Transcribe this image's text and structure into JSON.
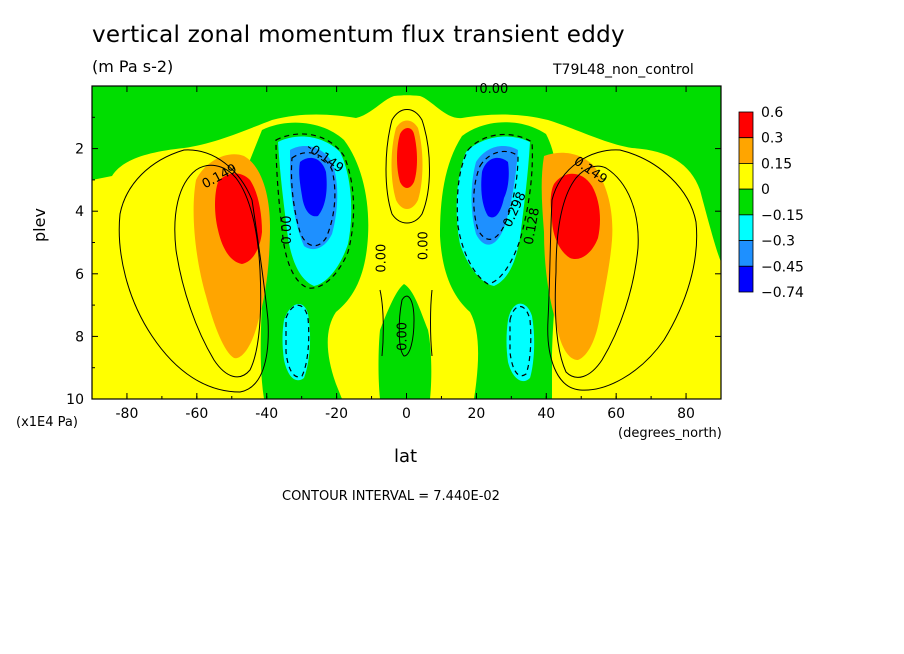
{
  "chart_data": {
    "type": "heatmap",
    "title": "vertical zonal momentum flux transient eddy",
    "units": "(m Pa s-2)",
    "run_label": "T79L48_non_control",
    "xlabel": "lat",
    "x_units": "(degrees_north)",
    "ylabel": "plev",
    "y_units": "(x1E4 Pa)",
    "xlim": [
      -90,
      90
    ],
    "ylim": [
      10,
      0
    ],
    "x_ticks": [
      "-80",
      "-60",
      "-40",
      "-20",
      "0",
      "20",
      "40",
      "60",
      "80"
    ],
    "x_tick_values": [
      -80,
      -60,
      -40,
      -20,
      0,
      20,
      40,
      60,
      80
    ],
    "y_ticks": [
      "2",
      "4",
      "6",
      "8",
      "10"
    ],
    "y_tick_values": [
      2,
      4,
      6,
      8,
      10
    ],
    "contour_interval_text": "CONTOUR INTERVAL = 7.440E-02",
    "colorbar": {
      "levels": [
        "0.6",
        "0.3",
        "0.15",
        "0",
        "−0.15",
        "−0.3",
        "−0.45",
        "−0.74"
      ],
      "colors": [
        "#ff0000",
        "#ffa500",
        "#ffff00",
        "#00dd00",
        "#00ffff",
        "#1e90ff",
        "#0000ff"
      ]
    },
    "contour_labels": [
      "0.149",
      "-0.149",
      "0.00",
      "0.00",
      "0.00",
      "0.149",
      "0.298",
      "0.128",
      "0.00",
      "0.00",
      "0.00",
      "0.00"
    ],
    "features": [
      {
        "name": "SH positive max",
        "lat": -46,
        "plev": 4.0,
        "value": 0.6
      },
      {
        "name": "SH negative min",
        "lat": -27,
        "plev": 3.4,
        "value": -0.74
      },
      {
        "name": "equatorial positive max",
        "lat": 0,
        "plev": 2.4,
        "value": 0.6
      },
      {
        "name": "NH negative min",
        "lat": 27,
        "plev": 3.4,
        "value": -0.74
      },
      {
        "name": "NH positive max",
        "lat": 47,
        "plev": 4.0,
        "value": 0.6
      },
      {
        "name": "SH low-level negative",
        "lat": -32,
        "plev": 8.2,
        "value": -0.3
      },
      {
        "name": "NH low-level negative",
        "lat": 33,
        "plev": 8.2,
        "value": -0.3
      }
    ]
  }
}
